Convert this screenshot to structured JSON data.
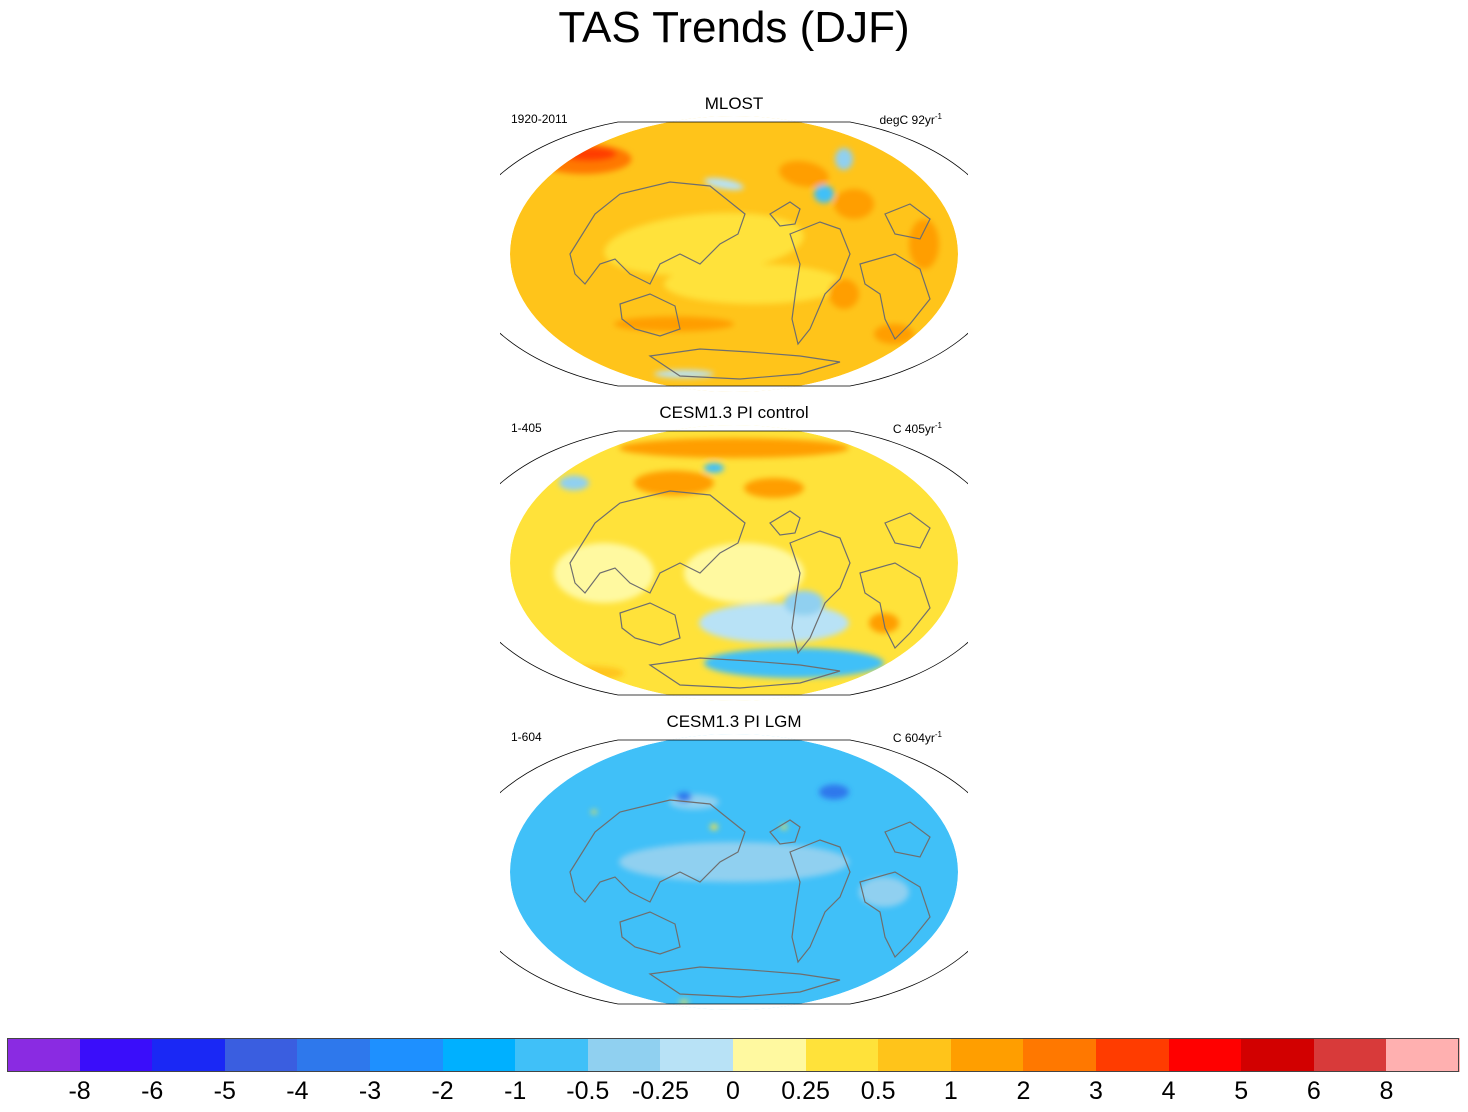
{
  "figure": {
    "title": "TAS Trends (DJF)"
  },
  "panels": [
    {
      "title": "MLOST",
      "period": "1920-2011",
      "units_prefix": "degC 92yr",
      "units_exp": "-1",
      "pattern": "observed"
    },
    {
      "title": "CESM1.3 PI control",
      "period": "1-405",
      "units_prefix": "C 405yr",
      "units_exp": "-1",
      "pattern": "control"
    },
    {
      "title": "CESM1.3 PI LGM",
      "period": "1-604",
      "units_prefix": "C 604yr",
      "units_exp": "-1",
      "pattern": "lgm"
    }
  ],
  "colorbar": {
    "colors": [
      "#8a2be2",
      "#3a0dfa",
      "#1a28f5",
      "#3a5ee0",
      "#2e78ec",
      "#1e90ff",
      "#00b0ff",
      "#40c0f8",
      "#90d0f0",
      "#b8e2f6",
      "#fff9a0",
      "#ffe23a",
      "#ffc41a",
      "#ff9e00",
      "#ff7800",
      "#ff3c00",
      "#ff0000",
      "#d20000",
      "#d83a3a",
      "#ffb0b0"
    ],
    "ticks": [
      "-8",
      "-6",
      "-5",
      "-4",
      "-3",
      "-2",
      "-1",
      "-0.5",
      "-0.25",
      "0",
      "0.25",
      "0.5",
      "1",
      "2",
      "3",
      "4",
      "5",
      "6",
      "8"
    ]
  }
}
